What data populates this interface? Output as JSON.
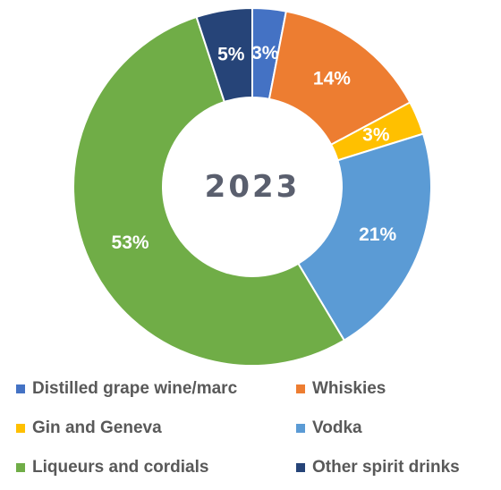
{
  "chart_data": {
    "type": "pie",
    "variant": "donut",
    "center_label": "2023",
    "slices": [
      {
        "name": "Distilled grape wine/marc",
        "value": 3,
        "label": "3%",
        "color": "#4472c4"
      },
      {
        "name": "Whiskies",
        "value": 14,
        "label": "14%",
        "color": "#ed7d31"
      },
      {
        "name": "Gin and Geneva",
        "value": 3,
        "label": "3%",
        "color": "#ffc000"
      },
      {
        "name": "Vodka",
        "value": 21,
        "label": "21%",
        "color": "#5b9bd5"
      },
      {
        "name": "Liqueurs and cordials",
        "value": 53,
        "label": "53%",
        "color": "#70ad47"
      },
      {
        "name": "Other spirit drinks",
        "value": 5,
        "label": "5%",
        "color": "#264478"
      }
    ],
    "legend_position": "bottom"
  }
}
